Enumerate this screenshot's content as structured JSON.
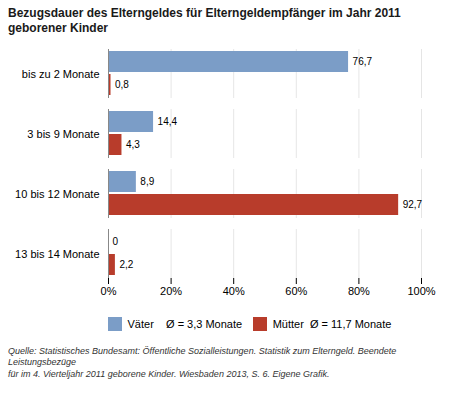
{
  "chart_data": {
    "type": "bar",
    "orientation": "horizontal",
    "title": "Bezugsdauer des Elterngeldes für Elterngeldempfänger im Jahr 2011 geborener Kinder",
    "categories": [
      "bis zu 2 Monate",
      "3 bis 9 Monate",
      "10 bis 12 Monate",
      "13 bis 14 Monate"
    ],
    "series": [
      {
        "name": "Väter    Ø = 3,3 Monate",
        "color": "#7b9dc7",
        "values": [
          76.7,
          14.4,
          8.9,
          0
        ],
        "value_labels": [
          "76,7",
          "14,4",
          "8,9",
          "0"
        ]
      },
      {
        "name": "Mütter  Ø = 11,7 Monate",
        "color": "#b83c2b",
        "values": [
          0.8,
          4.3,
          92.7,
          2.2
        ],
        "value_labels": [
          "0,8",
          "4,3",
          "92,7",
          "2,2"
        ]
      }
    ],
    "xlim": [
      0,
      100
    ],
    "xticks": [
      {
        "value": 0,
        "label": "0%"
      },
      {
        "value": 20,
        "label": "20%"
      },
      {
        "value": 40,
        "label": "40%"
      },
      {
        "value": 60,
        "label": "60%"
      },
      {
        "value": 80,
        "label": "80%"
      },
      {
        "value": 100,
        "label": "100%"
      }
    ],
    "grid": true,
    "data_labels": true,
    "legend": "bottom",
    "caption": "Quelle: Statistisches Bundesamt: Öffentliche Sozialleistungen. Statistik zum Elterngeld. Beendete Leistungsbezüge\nfür im 4. Vierteljahr 2011 geborene Kinder. Wiesbaden 2013, S. 6. Eigene Grafik."
  }
}
